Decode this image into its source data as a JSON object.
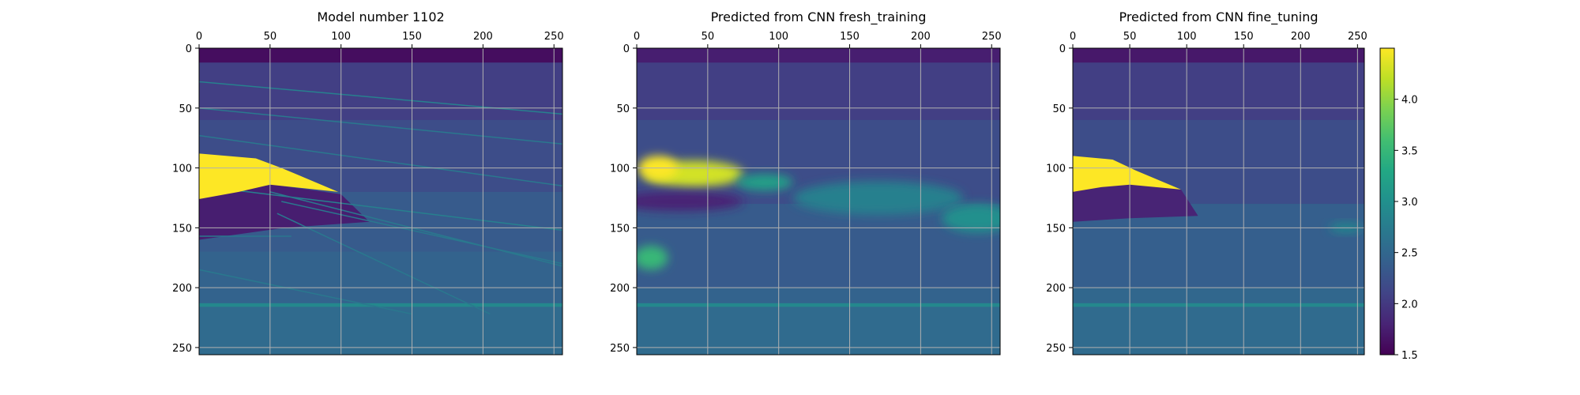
{
  "chart_data": {
    "type": "heatmap",
    "colormap": "viridis",
    "grid": true,
    "x_axis_position": "top",
    "y_axis_inverted": true,
    "panels": [
      {
        "title": "Model number 1102",
        "xlim": [
          0,
          256
        ],
        "ylim": [
          256,
          0
        ],
        "xticks": [
          0,
          50,
          100,
          150,
          200,
          250
        ],
        "yticks": [
          0,
          50,
          100,
          150,
          200,
          250
        ],
        "background_layers": [
          {
            "y": [
              0,
              12
            ],
            "value": 1.6
          },
          {
            "y": [
              12,
              60
            ],
            "value": 2.05
          },
          {
            "y": [
              60,
              120
            ],
            "value": 2.2
          },
          {
            "y": [
              120,
              170
            ],
            "value": 2.35
          },
          {
            "y": [
              170,
              213
            ],
            "value": 2.45
          },
          {
            "y": [
              213,
              216
            ],
            "value": 2.9
          },
          {
            "y": [
              216,
              256
            ],
            "value": 2.55
          }
        ],
        "body": {
          "value": 4.5,
          "outline": [
            [
              0,
              88
            ],
            [
              40,
              92
            ],
            [
              58,
              100
            ],
            [
              98,
              120
            ],
            [
              50,
              114
            ],
            [
              28,
              120
            ],
            [
              0,
              126
            ]
          ]
        },
        "dark_zone": {
          "value": 1.75,
          "outline": [
            [
              0,
              126
            ],
            [
              28,
              118
            ],
            [
              52,
              114
            ],
            [
              100,
              122
            ],
            [
              120,
              145
            ],
            [
              60,
              150
            ],
            [
              0,
              160
            ]
          ]
        },
        "reflectors": [
          {
            "points": [
              [
                0,
                28
              ],
              [
                256,
                55
              ]
            ],
            "value": 2.8
          },
          {
            "points": [
              [
                0,
                50
              ],
              [
                256,
                80
              ]
            ],
            "value": 2.7
          },
          {
            "points": [
              [
                0,
                73
              ],
              [
                256,
                115
              ]
            ],
            "value": 2.7
          },
          {
            "points": [
              [
                0,
                115
              ],
              [
                256,
                152
              ]
            ],
            "value": 2.8
          },
          {
            "points": [
              [
                50,
                120
              ],
              [
                256,
                182
              ]
            ],
            "value": 2.7
          },
          {
            "points": [
              [
                58,
                128
              ],
              [
                256,
                180
              ]
            ],
            "value": 2.7
          },
          {
            "points": [
              [
                55,
                138
              ],
              [
                205,
                222
              ]
            ],
            "value": 2.7
          },
          {
            "points": [
              [
                0,
                185
              ],
              [
                150,
                222
              ]
            ],
            "value": 2.7
          },
          {
            "points": [
              [
                0,
                157
              ],
              [
                65,
                157
              ]
            ],
            "value": 2.7
          }
        ],
        "blobs": []
      },
      {
        "title": "Predicted from CNN fresh_training",
        "xlim": [
          0,
          256
        ],
        "ylim": [
          256,
          0
        ],
        "xticks": [
          0,
          50,
          100,
          150,
          200,
          250
        ],
        "yticks": [
          0,
          50,
          100,
          150,
          200,
          250
        ],
        "background_layers": [
          {
            "y": [
              0,
              12
            ],
            "value": 1.75
          },
          {
            "y": [
              12,
              60
            ],
            "value": 2.05
          },
          {
            "y": [
              60,
              130
            ],
            "value": 2.2
          },
          {
            "y": [
              130,
              200
            ],
            "value": 2.35
          },
          {
            "y": [
              200,
              213
            ],
            "value": 2.45
          },
          {
            "y": [
              213,
              216
            ],
            "value": 2.9
          },
          {
            "y": [
              216,
              256
            ],
            "value": 2.55
          }
        ],
        "blobs": [
          {
            "cx": 40,
            "cy": 105,
            "rx": 35,
            "ry": 11,
            "value": 4.3
          },
          {
            "cx": 15,
            "cy": 100,
            "rx": 14,
            "ry": 10,
            "value": 4.5
          },
          {
            "cx": 90,
            "cy": 112,
            "rx": 20,
            "ry": 7,
            "value": 3.2
          },
          {
            "cx": 30,
            "cy": 128,
            "rx": 45,
            "ry": 8,
            "value": 1.8
          },
          {
            "cx": 10,
            "cy": 175,
            "rx": 12,
            "ry": 10,
            "value": 3.5
          },
          {
            "cx": 170,
            "cy": 125,
            "rx": 60,
            "ry": 14,
            "value": 2.8
          },
          {
            "cx": 240,
            "cy": 142,
            "rx": 25,
            "ry": 12,
            "value": 3.0
          }
        ]
      },
      {
        "title": "Predicted from CNN fine_tuning",
        "xlim": [
          0,
          256
        ],
        "ylim": [
          256,
          0
        ],
        "xticks": [
          0,
          50,
          100,
          150,
          200,
          250
        ],
        "yticks": [
          0,
          50,
          100,
          150,
          200,
          250
        ],
        "background_layers": [
          {
            "y": [
              0,
              12
            ],
            "value": 1.7
          },
          {
            "y": [
              12,
              60
            ],
            "value": 2.05
          },
          {
            "y": [
              60,
              130
            ],
            "value": 2.2
          },
          {
            "y": [
              130,
              200
            ],
            "value": 2.4
          },
          {
            "y": [
              200,
              213
            ],
            "value": 2.5
          },
          {
            "y": [
              213,
              216
            ],
            "value": 2.9
          },
          {
            "y": [
              216,
              256
            ],
            "value": 2.55
          }
        ],
        "body": {
          "value": 4.5,
          "outline": [
            [
              0,
              90
            ],
            [
              35,
              93
            ],
            [
              55,
              102
            ],
            [
              95,
              118
            ],
            [
              50,
              114
            ],
            [
              25,
              116
            ],
            [
              0,
              120
            ]
          ]
        },
        "dark_zone": {
          "value": 1.8,
          "outline": [
            [
              0,
              120
            ],
            [
              25,
              115
            ],
            [
              52,
              113
            ],
            [
              95,
              118
            ],
            [
              110,
              140
            ],
            [
              50,
              142
            ],
            [
              0,
              145
            ]
          ]
        },
        "blobs": [
          {
            "cx": 240,
            "cy": 150,
            "rx": 15,
            "ry": 4,
            "value": 2.9
          }
        ]
      }
    ],
    "colorbar": {
      "range": [
        1.5,
        4.5
      ],
      "ticks": [
        "1.5",
        "2.0",
        "2.5",
        "3.0",
        "3.5",
        "4.0"
      ],
      "tick_values": [
        1.5,
        2.0,
        2.5,
        3.0,
        3.5,
        4.0
      ]
    }
  }
}
